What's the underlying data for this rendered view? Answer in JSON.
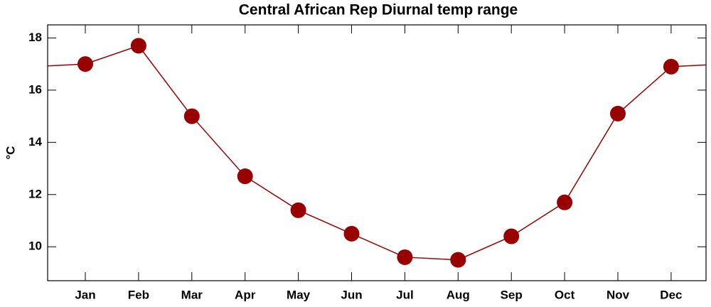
{
  "chart_data": {
    "type": "line",
    "title": "Central African Rep Diurnal temp range",
    "y_label": "°C",
    "categories": [
      "Jan",
      "Feb",
      "Mar",
      "Apr",
      "May",
      "Jun",
      "Jul",
      "Aug",
      "Sep",
      "Oct",
      "Nov",
      "Dec"
    ],
    "series": [
      {
        "name": "Diurnal temp range",
        "color": "#990000",
        "values": [
          17.0,
          17.7,
          15.0,
          12.7,
          11.4,
          10.5,
          9.6,
          9.5,
          10.4,
          11.7,
          15.1,
          16.9
        ]
      }
    ],
    "ylim": [
      8.7,
      18.5
    ],
    "yticks": [
      10,
      12,
      14,
      16,
      18
    ],
    "grid": false
  }
}
